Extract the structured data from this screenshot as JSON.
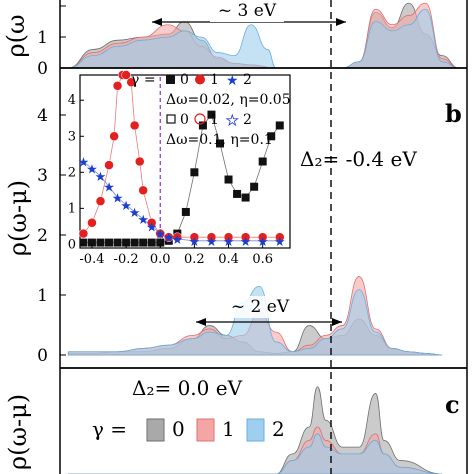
{
  "colors": {
    "gamma0": "#a9a9a9",
    "gamma1": "#f4a6a6",
    "gamma2": "#9ecfee",
    "gamma0_stroke": "#6e6e6e",
    "gamma1_stroke": "#e07070",
    "gamma2_stroke": "#6aaedc",
    "marker_red": "#e32020",
    "marker_blue": "#1a3fd0",
    "fermi_line": "#8a2be2"
  },
  "chart_data": [
    {
      "panel": "a",
      "type": "area",
      "ylabel": "ρ(ω",
      "yticks": [
        "0",
        "1"
      ],
      "ylim": [
        0,
        2.2
      ],
      "annotations": [
        {
          "text": "~ 3 eV"
        }
      ],
      "series": [
        {
          "key": "0",
          "x": [
            -2.5,
            -2.2,
            -1.9,
            -1.6,
            -1.3,
            -1.1,
            -0.9,
            -0.7,
            -0.5,
            -0.3,
            0.0,
            0.4,
            0.8,
            1.0,
            1.2,
            1.4,
            1.6,
            1.8,
            2.0,
            2.2
          ],
          "values": [
            0.0,
            0.6,
            0.9,
            1.0,
            1.1,
            1.5,
            0.9,
            0.3,
            0.15,
            0.1,
            0.0,
            0.0,
            0.0,
            0.2,
            1.8,
            1.3,
            2.1,
            1.1,
            0.4,
            0.0
          ]
        },
        {
          "key": "1",
          "x": [
            -2.5,
            -2.2,
            -1.9,
            -1.6,
            -1.3,
            -1.1,
            -0.9,
            -0.7,
            -0.5,
            -0.3,
            0.0,
            0.4,
            0.8,
            1.0,
            1.2,
            1.4,
            1.6,
            1.8,
            2.0,
            2.2
          ],
          "values": [
            0.0,
            0.5,
            0.8,
            1.0,
            1.4,
            1.2,
            0.7,
            0.35,
            0.15,
            0.1,
            0.0,
            0.0,
            0.0,
            0.2,
            1.9,
            1.4,
            1.7,
            2.1,
            0.3,
            0.0
          ]
        },
        {
          "key": "2",
          "x": [
            -2.5,
            -2.2,
            -1.9,
            -1.6,
            -1.3,
            -1.1,
            -0.9,
            -0.7,
            -0.5,
            -0.3,
            -0.1,
            0.0,
            0.4,
            0.8,
            1.0,
            1.2,
            1.4,
            1.6,
            1.8,
            2.0,
            2.2
          ],
          "values": [
            0.0,
            0.4,
            0.7,
            0.9,
            1.0,
            1.2,
            1.0,
            0.5,
            0.4,
            1.4,
            0.6,
            0.0,
            0.0,
            0.0,
            0.2,
            1.5,
            1.2,
            1.4,
            1.9,
            0.2,
            0.0
          ]
        }
      ]
    },
    {
      "panel": "b",
      "type": "area",
      "ylabel": "ρ(ω-μ)",
      "yticks": [
        "0",
        "1",
        "2",
        "3",
        "4"
      ],
      "ylim": [
        0,
        4.4
      ],
      "annotations": [
        {
          "text": "Δ₂= -0.4 eV"
        },
        {
          "text": "~ 2 eV"
        }
      ],
      "series": [
        {
          "key": "0",
          "x": [
            -2.5,
            -2.2,
            -1.9,
            -1.6,
            -1.3,
            -1.0,
            -0.8,
            -0.6,
            -0.4,
            -0.2,
            0.0,
            0.2,
            0.4,
            0.6,
            0.8,
            1.0,
            1.2,
            1.4,
            1.6,
            1.8,
            2.0
          ],
          "values": [
            0.05,
            0.05,
            0.1,
            0.1,
            0.2,
            0.5,
            0.9,
            0.6,
            0.4,
            0.1,
            0.05,
            0.1,
            0.9,
            0.5,
            0.6,
            1.1,
            0.6,
            0.2,
            0.1,
            0.05,
            0.0
          ]
        },
        {
          "key": "1",
          "x": [
            -2.5,
            -2.2,
            -1.9,
            -1.6,
            -1.3,
            -1.0,
            -0.8,
            -0.6,
            -0.4,
            -0.2,
            0.0,
            0.2,
            0.4,
            0.6,
            0.8,
            1.0,
            1.2,
            1.4,
            1.6,
            1.8,
            2.0
          ],
          "values": [
            0.1,
            0.1,
            0.1,
            0.2,
            0.3,
            0.6,
            0.8,
            0.5,
            0.6,
            1.3,
            0.7,
            0.1,
            0.3,
            0.6,
            0.9,
            2.4,
            0.8,
            0.2,
            0.1,
            0.05,
            0.0
          ]
        },
        {
          "key": "2",
          "x": [
            -2.5,
            -2.2,
            -1.9,
            -1.6,
            -1.3,
            -1.0,
            -0.8,
            -0.6,
            -0.4,
            -0.2,
            0.0,
            0.2,
            0.4,
            0.6,
            0.8,
            1.0,
            1.2,
            1.4,
            1.6,
            1.8,
            2.0
          ],
          "values": [
            0.1,
            0.1,
            0.1,
            0.2,
            0.3,
            0.5,
            0.7,
            0.6,
            1.6,
            2.1,
            0.4,
            0.1,
            0.2,
            0.5,
            0.8,
            2.0,
            0.7,
            0.2,
            0.1,
            0.05,
            0.0
          ]
        }
      ]
    },
    {
      "panel": "b-inset",
      "type": "scatter",
      "xticks": [
        "-0.4",
        "-0.2",
        "0.0",
        "0.2",
        "0.4",
        "0.6"
      ],
      "yticks": [
        "0",
        "1",
        "2",
        "3",
        "4"
      ],
      "xlim": [
        -0.47,
        0.76
      ],
      "ylim": [
        -0.1,
        4.7
      ],
      "legend": {
        "gamma_label": "γ =",
        "row1_labels": [
          "0",
          "1",
          "2"
        ],
        "row1_params": "Δω=0.02, η=0.05",
        "row2_labels": [
          "0",
          "1",
          "2"
        ],
        "row2_params": "Δω=0.1, η=0.1"
      },
      "series": [
        {
          "key": "γ=0 (filled)",
          "x": [
            -0.45,
            -0.4,
            -0.35,
            -0.3,
            -0.25,
            -0.2,
            -0.15,
            -0.1,
            -0.05,
            0.0,
            0.05,
            0.1,
            0.15,
            0.2,
            0.25,
            0.3,
            0.35,
            0.4,
            0.45,
            0.5,
            0.55,
            0.6,
            0.65,
            0.7
          ],
          "values": [
            0.05,
            0.05,
            0.05,
            0.05,
            0.05,
            0.05,
            0.05,
            0.05,
            0.05,
            0.05,
            0.1,
            0.3,
            0.9,
            2.0,
            3.3,
            3.6,
            2.8,
            1.8,
            1.4,
            1.3,
            1.6,
            2.3,
            3.0,
            3.3
          ]
        },
        {
          "key": "γ=1 (filled)",
          "x": [
            -0.45,
            -0.4,
            -0.35,
            -0.3,
            -0.27,
            -0.25,
            -0.22,
            -0.2,
            -0.17,
            -0.15,
            -0.12,
            -0.1,
            -0.05,
            0.0,
            0.05,
            0.1,
            0.2,
            0.3,
            0.4,
            0.5,
            0.6,
            0.7
          ],
          "values": [
            0.3,
            0.6,
            1.2,
            2.2,
            3.0,
            4.4,
            4.7,
            5.2,
            4.5,
            3.3,
            2.3,
            1.5,
            0.6,
            0.3,
            0.2,
            0.2,
            0.2,
            0.2,
            0.2,
            0.2,
            0.2,
            0.2
          ]
        },
        {
          "key": "γ=2 (filled)",
          "x": [
            -0.45,
            -0.4,
            -0.35,
            -0.3,
            -0.25,
            -0.2,
            -0.15,
            -0.1,
            -0.05,
            0.0,
            0.05,
            0.1,
            0.2,
            0.3,
            0.4,
            0.5,
            0.6,
            0.7
          ],
          "values": [
            2.3,
            2.1,
            1.9,
            1.6,
            1.3,
            1.1,
            0.9,
            0.7,
            0.5,
            0.3,
            0.2,
            0.15,
            0.1,
            0.1,
            0.1,
            0.1,
            0.1,
            0.1
          ]
        }
      ]
    },
    {
      "panel": "c",
      "type": "area",
      "ylabel": "ρ(ω-μ)",
      "annotations": [
        {
          "text": "Δ₂= 0.0 eV"
        }
      ],
      "legend": {
        "label": "γ =",
        "entries": [
          "0",
          "1",
          "2"
        ]
      },
      "series": [
        {
          "key": "0",
          "x": [
            -2.5,
            -1.5,
            -0.5,
            -0.2,
            0.0,
            0.2,
            0.4,
            0.5,
            0.6,
            0.8,
            1.0,
            1.2,
            1.3,
            1.5,
            2.0
          ],
          "values": [
            0.0,
            0.0,
            0.0,
            0.0,
            0.0,
            0.3,
            0.7,
            1.3,
            0.8,
            0.4,
            0.4,
            1.2,
            0.5,
            0.2,
            0.0
          ]
        },
        {
          "key": "1",
          "x": [
            -2.5,
            -1.5,
            -0.5,
            -0.2,
            0.0,
            0.2,
            0.4,
            0.5,
            0.6,
            0.8,
            1.0,
            1.2,
            1.3,
            1.5,
            2.0
          ],
          "values": [
            0.0,
            0.0,
            0.0,
            0.0,
            0.0,
            0.2,
            0.5,
            0.7,
            0.5,
            0.3,
            0.3,
            0.6,
            0.3,
            0.1,
            0.0
          ]
        },
        {
          "key": "2",
          "x": [
            -2.5,
            -1.5,
            -0.5,
            -0.2,
            0.0,
            0.2,
            0.4,
            0.5,
            0.6,
            0.8,
            1.0,
            1.2,
            1.3,
            1.5,
            2.0
          ],
          "values": [
            0.0,
            0.0,
            0.0,
            0.0,
            0.0,
            0.2,
            0.4,
            0.6,
            0.4,
            0.3,
            0.3,
            0.5,
            0.3,
            0.1,
            0.0
          ]
        }
      ]
    }
  ]
}
